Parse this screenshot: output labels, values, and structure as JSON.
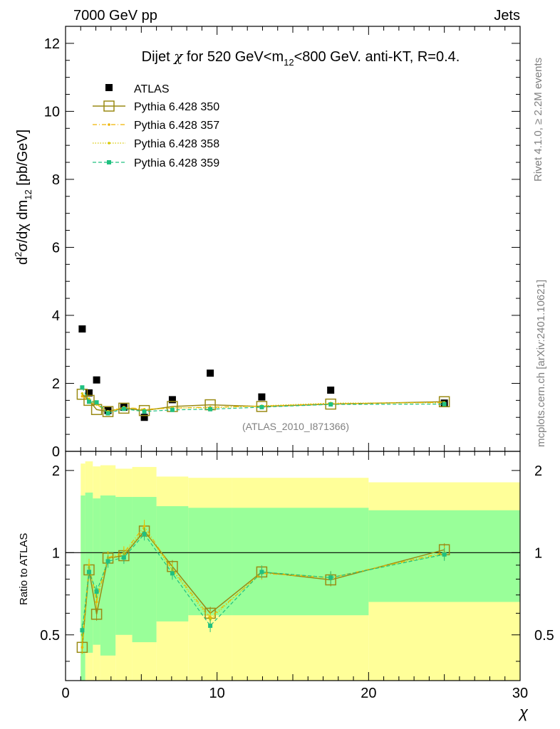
{
  "header": {
    "left": "7000 GeV pp",
    "right": "Jets"
  },
  "side_labels": {
    "rivet": "Rivet 4.1.0, ≥ 2.2M events",
    "site": "mcplots.cern.ch [arXiv:2401.10621]"
  },
  "chart_data": [
    {
      "type": "scatter",
      "panel": "main",
      "title": "Dijet χ for 520 GeV<m12<800 GeV.  anti-KT, R=0.4.",
      "title_parts": {
        "a": "Dijet ",
        "chi": "χ",
        "b": " for 520 GeV<m",
        "sub": "12",
        "c": "<800 GeV.  anti-KT, R=0.4."
      },
      "ylabel": "d²σ/dχ dm12 [pb/GeV]",
      "ylabel_parts": {
        "a": "d",
        "sup": "2",
        "b": "σ/dχ dm",
        "sub": "12",
        "c": " [pb/GeV]"
      },
      "xlabel": "χ",
      "xlim": [
        0,
        30
      ],
      "ylim": [
        0,
        12.5
      ],
      "yticks": [
        "0",
        "2",
        "4",
        "6",
        "8",
        "10",
        "12"
      ],
      "analysis_tag": "(ATLAS_2010_I871366)",
      "legend_position": "top-left",
      "x": [
        1.1,
        1.55,
        2.05,
        2.8,
        3.85,
        5.2,
        7.05,
        9.55,
        12.95,
        17.5,
        25.0
      ],
      "series": [
        {
          "name": "ATLAS",
          "style": "data",
          "color": "#000000",
          "values": [
            3.6,
            1.72,
            2.1,
            1.2,
            1.3,
            1.0,
            1.52,
            2.3,
            1.6,
            1.8,
            1.42
          ]
        },
        {
          "name": "Pythia 6.428 350",
          "style": "solid-open-square",
          "color": "#9a8a14",
          "values": [
            1.68,
            1.5,
            1.23,
            1.17,
            1.27,
            1.2,
            1.32,
            1.37,
            1.32,
            1.39,
            1.46
          ]
        },
        {
          "name": "Pythia 6.428 357",
          "style": "dashdot",
          "color": "#f0b400",
          "values": [
            1.62,
            1.45,
            1.38,
            1.15,
            1.3,
            1.24,
            1.27,
            1.3,
            1.33,
            1.4,
            1.44
          ]
        },
        {
          "name": "Pythia 6.428 358",
          "style": "dotted",
          "color": "#d6c800",
          "values": [
            1.7,
            1.55,
            1.4,
            1.18,
            1.3,
            1.22,
            1.28,
            1.28,
            1.34,
            1.42,
            1.43
          ]
        },
        {
          "name": "Pythia 6.428 359",
          "style": "dashed",
          "color": "#20c080",
          "values": [
            1.88,
            1.46,
            1.44,
            1.12,
            1.25,
            1.17,
            1.22,
            1.24,
            1.3,
            1.38,
            1.39
          ]
        }
      ]
    },
    {
      "type": "scatter",
      "panel": "ratio",
      "ylabel": "Ratio to ATLAS",
      "xlabel": "χ",
      "xlim": [
        0,
        30
      ],
      "ylim": [
        0.34,
        2.35
      ],
      "ylog": true,
      "xticks": [
        "0",
        "10",
        "20",
        "30"
      ],
      "yticks": [
        "0.5",
        "1",
        "2"
      ],
      "bands": {
        "edges": [
          1.0,
          1.3,
          1.8,
          2.3,
          3.3,
          4.4,
          6.0,
          8.1,
          11.0,
          15.0,
          20.0,
          30.0
        ],
        "outer_low": [
          0.34,
          0.34,
          0.34,
          0.34,
          0.34,
          0.34,
          0.34,
          0.34,
          0.34,
          0.34,
          0.34
        ],
        "outer_high": [
          2.12,
          2.16,
          2.07,
          2.09,
          2.03,
          2.06,
          1.9,
          1.88,
          1.88,
          1.88,
          1.81
        ],
        "inner_low": [
          0.34,
          0.43,
          0.46,
          0.42,
          0.5,
          0.47,
          0.56,
          0.59,
          0.59,
          0.59,
          0.66
        ],
        "inner_high": [
          1.62,
          1.66,
          1.58,
          1.62,
          1.6,
          1.6,
          1.48,
          1.46,
          1.46,
          1.46,
          1.43
        ]
      },
      "x": [
        1.1,
        1.55,
        2.05,
        2.8,
        3.85,
        5.2,
        7.05,
        9.55,
        12.95,
        17.5,
        25.0
      ],
      "series": [
        {
          "name": "Pythia 6.428 350",
          "color": "#9a8a14",
          "values": [
            0.45,
            0.865,
            0.595,
            0.955,
            0.975,
            1.2,
            0.89,
            0.6,
            0.85,
            0.795,
            1.025
          ]
        },
        {
          "name": "Pythia 6.428 357",
          "color": "#f0b400",
          "values": [
            0.45,
            0.9,
            0.66,
            0.96,
            1.0,
            1.25,
            0.87,
            0.58,
            0.84,
            0.81,
            1.0
          ]
        },
        {
          "name": "Pythia 6.428 358",
          "color": "#d6c800",
          "values": [
            0.5,
            0.88,
            0.69,
            0.95,
            0.99,
            1.22,
            0.86,
            0.57,
            0.85,
            0.81,
            0.99
          ]
        },
        {
          "name": "Pythia 6.428 359",
          "color": "#20c080",
          "values": [
            0.52,
            0.85,
            0.72,
            0.93,
            0.96,
            1.17,
            0.84,
            0.54,
            0.85,
            0.81,
            0.985
          ]
        }
      ]
    }
  ]
}
